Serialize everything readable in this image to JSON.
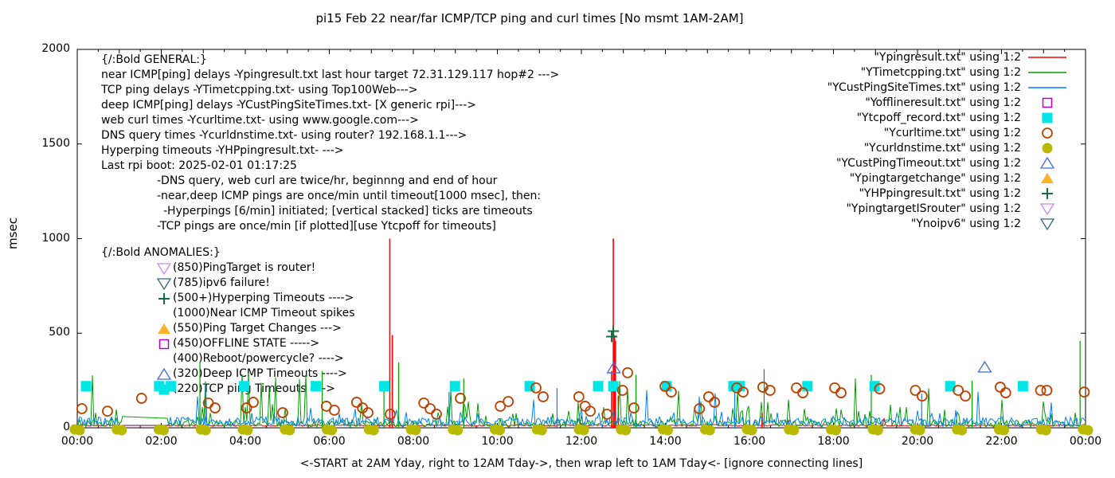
{
  "title": "pi15 Feb 22  near/far ICMP/TCP ping and curl times [No msmt 1AM-2AM]",
  "chart_data": {
    "type": "line",
    "title": "pi15 Feb 22  near/far ICMP/TCP ping and curl times [No msmt 1AM-2AM]",
    "xlabel": "<-START at 2AM Yday, right to 12AM Tday->, then wrap left to 1AM Tday<- [ignore connecting lines]",
    "ylabel": "msec",
    "ylim": [
      0,
      2000
    ],
    "y_ticks": [
      0,
      500,
      1000,
      1500,
      2000
    ],
    "x_range_hours": [
      0,
      24
    ],
    "x_tick_labels": [
      "00:00",
      "02:00",
      "04:00",
      "06:00",
      "08:00",
      "10:00",
      "12:00",
      "14:00",
      "16:00",
      "18:00",
      "20:00",
      "22:00",
      "00:00"
    ],
    "grid": false,
    "legend_position": "inside-top-right",
    "measurement_gap_hours": [
      1.05,
      2.17
    ],
    "series": [
      {
        "label": "\"Ypingresult.txt\" using 1:2",
        "style": "line",
        "color": "#ff0000",
        "render": "baseline-impulses",
        "baseline_msec": 12,
        "impulses": [
          [
            7.44,
            1000
          ],
          [
            7.5,
            490
          ],
          [
            12.72,
            300
          ],
          [
            12.76,
            1000
          ],
          [
            12.79,
            490
          ],
          [
            12.81,
            460
          ],
          [
            12.88,
            170
          ],
          [
            16.3,
            80
          ]
        ]
      },
      {
        "label": "\"YTimetcpping.txt\" using 1:2",
        "style": "line",
        "color": "#00a000",
        "render": "noise",
        "noise": {
          "base": 4,
          "amp": 38,
          "spike_prob": 0.12,
          "spike_amp": 130,
          "tall_prob": 0.012,
          "tall_base": 180,
          "tall_amp": 120
        },
        "gap_level": [
          60,
          50
        ],
        "events": [
          [
            2.92,
            350
          ],
          [
            5.83,
            300
          ],
          [
            7.3,
            240
          ],
          [
            7.65,
            345
          ],
          [
            9.2,
            260
          ],
          [
            13.3,
            280
          ],
          [
            16.35,
            310
          ],
          [
            18.9,
            280
          ],
          [
            21.3,
            250
          ],
          [
            23.87,
            460
          ]
        ]
      },
      {
        "label": "\"YCustPingSiteTimes.txt\" using 1:2",
        "style": "line",
        "color": "#0080ff",
        "render": "noise",
        "noise": {
          "base": 6,
          "amp": 52,
          "spike_prob": 0.08,
          "spike_amp": 60,
          "tall_prob": 0.01,
          "tall_base": 120,
          "tall_amp": 100
        },
        "gap_level": [
          14,
          14
        ],
        "events": [
          [
            3.05,
            230
          ],
          [
            8.85,
            190
          ],
          [
            11.42,
            210
          ],
          [
            15.65,
            230
          ],
          [
            20.1,
            180
          ]
        ]
      },
      {
        "label": "\"Yofflineresult.txt\" using 1:2",
        "style": "square-open",
        "color": "#bf00bf",
        "points": []
      },
      {
        "label": "\"Ytcpoff_record.txt\" using 1:2",
        "style": "square-fill",
        "color": "#00e5e5",
        "points": [
          [
            0.21,
            220
          ],
          [
            1.95,
            220
          ],
          [
            2.23,
            220
          ],
          [
            3.97,
            220
          ],
          [
            5.68,
            220
          ],
          [
            7.31,
            220
          ],
          [
            8.99,
            220
          ],
          [
            10.77,
            220
          ],
          [
            12.4,
            220
          ],
          [
            12.76,
            220
          ],
          [
            14.03,
            220
          ],
          [
            15.62,
            220
          ],
          [
            15.77,
            220
          ],
          [
            17.38,
            220
          ],
          [
            18.98,
            220
          ],
          [
            20.78,
            220
          ],
          [
            22.51,
            220
          ]
        ]
      },
      {
        "label": "\"Ycurltime.txt\" using 1:2",
        "style": "circle-open",
        "color": "#c04000",
        "points": [
          [
            0.11,
            101
          ],
          [
            0.72,
            88
          ],
          [
            1.53,
            156
          ],
          [
            3.12,
            131
          ],
          [
            3.28,
            105
          ],
          [
            4.03,
            105
          ],
          [
            4.19,
            135
          ],
          [
            4.89,
            80
          ],
          [
            5.93,
            114
          ],
          [
            6.12,
            93
          ],
          [
            6.65,
            135
          ],
          [
            6.79,
            105
          ],
          [
            6.92,
            80
          ],
          [
            7.45,
            72
          ],
          [
            8.25,
            131
          ],
          [
            8.4,
            101
          ],
          [
            8.55,
            72
          ],
          [
            9.12,
            156
          ],
          [
            10.07,
            114
          ],
          [
            10.26,
            139
          ],
          [
            10.92,
            211
          ],
          [
            11.09,
            164
          ],
          [
            11.94,
            164
          ],
          [
            12.09,
            114
          ],
          [
            12.21,
            88
          ],
          [
            12.61,
            72
          ],
          [
            12.98,
            198
          ],
          [
            13.1,
            291
          ],
          [
            13.25,
            105
          ],
          [
            13.99,
            219
          ],
          [
            14.14,
            189
          ],
          [
            14.81,
            101
          ],
          [
            15.03,
            164
          ],
          [
            15.17,
            135
          ],
          [
            15.7,
            211
          ],
          [
            15.85,
            189
          ],
          [
            16.32,
            215
          ],
          [
            16.49,
            198
          ],
          [
            17.12,
            211
          ],
          [
            17.27,
            185
          ],
          [
            18.03,
            211
          ],
          [
            18.18,
            185
          ],
          [
            19.1,
            206
          ],
          [
            19.95,
            198
          ],
          [
            20.11,
            168
          ],
          [
            20.97,
            198
          ],
          [
            21.14,
            168
          ],
          [
            21.97,
            215
          ],
          [
            22.1,
            185
          ],
          [
            22.93,
            198
          ],
          [
            23.08,
            198
          ],
          [
            23.97,
            189
          ]
        ]
      },
      {
        "label": "\"Ycurldnstime.txt\" using 1:2",
        "style": "circle-fill",
        "color": "#b9b900",
        "render": "hourly-pairs",
        "value": 0
      },
      {
        "label": "\"YCustPingTimeout.txt\" using 1:2",
        "style": "triangle-open",
        "color": "#4169e1",
        "points": [
          [
            12.77,
            316
          ],
          [
            21.6,
            320
          ]
        ]
      },
      {
        "label": "\"Ypingtargetchange\" using 1:2",
        "style": "triangle-fill",
        "color": "#ffb127",
        "points": []
      },
      {
        "label": "\"YHPpingresult.txt\" using 1:2",
        "style": "plus",
        "color": "#156c46",
        "points": [
          [
            12.72,
            482
          ],
          [
            12.76,
            511
          ]
        ]
      },
      {
        "label": "\"YpingtargetISrouter\" using 1:2",
        "style": "tridown-open",
        "color": "#cc87f0",
        "points": []
      },
      {
        "label": "\"Ynoipv6\" using 1:2",
        "style": "tridown-open",
        "color": "#336680",
        "points": []
      }
    ],
    "annotations": {
      "general": [
        {
          "text": "{/:Bold GENERAL:}",
          "indent": 0
        },
        {
          "text": "near ICMP[ping] delays -Ypingresult.txt last hour target 72.31.129.117 hop#2 --->",
          "indent": 0
        },
        {
          "text": "TCP ping delays -YTimetcpping.txt- using Top100Web--->",
          "indent": 0
        },
        {
          "text": "deep ICMP[ping] delays -YCustPingSiteTimes.txt- [X generic rpi]--->",
          "indent": 0
        },
        {
          "text": "web curl times -Ycurltime.txt- using www.google.com--->",
          "indent": 0
        },
        {
          "text": "DNS query times -Ycurldnstime.txt- using router? 192.168.1.1--->",
          "indent": 0
        },
        {
          "text": "Hyperping timeouts -YHPpingresult.txt- --->",
          "indent": 0
        },
        {
          "text": "Last rpi boot: 2025-02-01 01:17:25",
          "indent": 0
        },
        {
          "text": "-DNS query, web curl are twice/hr, beginnng and end of hour",
          "indent": 70
        },
        {
          "text": "-near,deep ICMP pings are once/min until timeout[1000 msec], then:",
          "indent": 70
        },
        {
          "text": "-Hyperpings [6/min] initiated; [vertical stacked] ticks are timeouts",
          "indent": 78
        },
        {
          "text": "-TCP pings are once/min [if plotted][use Ytcpoff for timeouts]",
          "indent": 70
        }
      ],
      "anomalies_header": "{/:Bold ANOMALIES:}",
      "anomalies": [
        {
          "icon": "tridown-open",
          "icon_color": "#cc87f0",
          "text": "(850)PingTarget is router!"
        },
        {
          "icon": "tridown-open",
          "icon_color": "#336680",
          "text": "(785)ipv6 failure!"
        },
        {
          "icon": "plus",
          "icon_color": "#156c46",
          "text": "(500+)Hyperping Timeouts ---->"
        },
        {
          "icon": "",
          "icon_color": "",
          "text": "(1000)Near ICMP Timeout spikes"
        },
        {
          "icon": "triangle-fill",
          "icon_color": "#ffb127",
          "text": "(550)Ping Target Changes --->"
        },
        {
          "icon": "square-open",
          "icon_color": "#bf00bf",
          "text": "(450)OFFLINE STATE ----->"
        },
        {
          "icon": "",
          "icon_color": "",
          "text": "(400)Reboot/powercycle? ---->"
        },
        {
          "icon": "triangle-open",
          "icon_color": "#4169e1",
          "text": "(320)Deep ICMP Timeouts ---->"
        },
        {
          "icon": "square-fill",
          "icon_color": "#00e5e5",
          "text": "(220)TCP ping Timeouts ---->"
        }
      ]
    }
  }
}
